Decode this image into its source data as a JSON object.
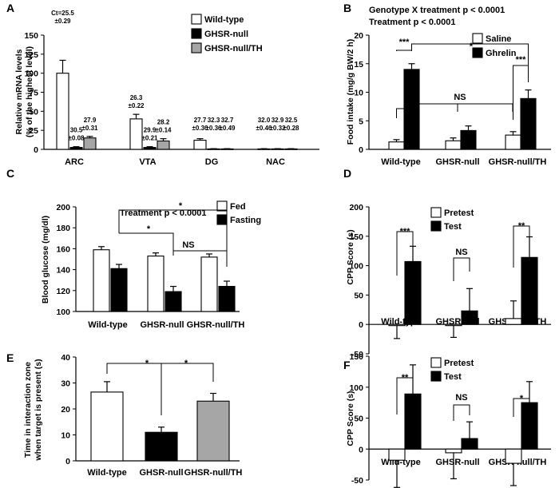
{
  "chart_data": [
    {
      "panel": "A",
      "type": "bar",
      "ylabel": [
        "Relative mRNA levels",
        "(% of the highest level)"
      ],
      "ylim": [
        0,
        150
      ],
      "yticks": [
        0,
        25,
        50,
        75,
        100,
        125,
        150
      ],
      "categories": [
        "ARC",
        "VTA",
        "DG",
        "NAC"
      ],
      "legend": [
        "Wild-type",
        "GHSR-null",
        "GHSR-null/TH"
      ],
      "colors": [
        "#ffffff",
        "#000000",
        "#a6a6a6"
      ],
      "series": [
        {
          "name": "Wild-type",
          "values": [
            100,
            40,
            12,
            0.6
          ],
          "errors": [
            17,
            6,
            2,
            0.3
          ]
        },
        {
          "name": "GHSR-null",
          "values": [
            2.5,
            2.5,
            0.6,
            0.6
          ],
          "errors": [
            1,
            1,
            0.3,
            0.3
          ]
        },
        {
          "name": "GHSR-null/TH",
          "values": [
            15,
            11,
            0.6,
            0.6
          ],
          "errors": [
            2,
            3,
            0.3,
            0.3
          ]
        }
      ],
      "ct_labels": [
        [
          "Ct=25.5",
          "±0.29"
        ],
        [
          "30.5",
          "±0.08"
        ],
        [
          "27.9",
          "±0.31"
        ],
        [
          "26.3",
          "±0.22"
        ],
        [
          "29.9",
          "±0.21"
        ],
        [
          "28.2",
          "±0.14"
        ],
        [
          "27.7",
          "±0.30"
        ],
        [
          "32.3",
          "±0.36"
        ],
        [
          "32.7",
          "±0.49"
        ],
        [
          "32.0",
          "±0.40"
        ],
        [
          "32.9",
          "±0.32"
        ],
        [
          "32.5",
          "±0.28"
        ]
      ]
    },
    {
      "panel": "B",
      "type": "bar",
      "ylabel": [
        "Food intake (mg/g BW/2 h)"
      ],
      "ylim": [
        0,
        20
      ],
      "yticks": [
        0,
        5,
        10,
        15,
        20
      ],
      "categories": [
        "Wild-type",
        "GHSR-null",
        "GHSR-null/TH"
      ],
      "legend": [
        "Saline",
        "Ghrelin"
      ],
      "colors": [
        "#ffffff",
        "#000000"
      ],
      "series": [
        {
          "name": "Saline",
          "values": [
            1.3,
            1.5,
            2.5
          ],
          "errors": [
            0.4,
            0.5,
            0.6
          ]
        },
        {
          "name": "Ghrelin",
          "values": [
            14,
            3.3,
            8.9
          ],
          "errors": [
            1.0,
            0.8,
            1.5
          ]
        }
      ],
      "stats_lines": [
        "Genotype X treatment p < 0.0001",
        "Treatment p < 0.0001"
      ],
      "annotations": [
        "***",
        "*",
        "***",
        "NS"
      ]
    },
    {
      "panel": "C",
      "type": "bar",
      "ylabel": [
        "Blood glucose (mg/dl)"
      ],
      "ylim": [
        100,
        200
      ],
      "yticks": [
        100,
        120,
        140,
        160,
        180,
        200
      ],
      "categories": [
        "Wild-type",
        "GHSR-null",
        "GHSR-null/TH"
      ],
      "legend": [
        "Fed",
        "Fasting"
      ],
      "colors": [
        "#ffffff",
        "#000000"
      ],
      "series": [
        {
          "name": "Fed",
          "values": [
            159,
            153,
            152
          ],
          "errors": [
            3,
            3,
            3
          ]
        },
        {
          "name": "Fasting",
          "values": [
            141,
            119,
            124
          ],
          "errors": [
            4,
            5,
            5
          ]
        }
      ],
      "stats_lines": [
        "Treatment p < 0.0001"
      ],
      "annotations": [
        "*",
        "*",
        "NS"
      ]
    },
    {
      "panel": "D",
      "type": "bar",
      "ylabel": [
        "CPP Score (s)"
      ],
      "ylim": [
        -50,
        200
      ],
      "yticks": [
        -50,
        0,
        50,
        100,
        150,
        200
      ],
      "categories": [
        "Wild-type",
        "GHSR-null",
        "GHSR-null/TH"
      ],
      "legend": [
        "Pretest",
        "Test"
      ],
      "colors": [
        "#ffffff",
        "#000000"
      ],
      "series": [
        {
          "name": "Pretest",
          "values": [
            -2,
            -2,
            10
          ],
          "errors": [
            22,
            20,
            30
          ]
        },
        {
          "name": "Test",
          "values": [
            107,
            23,
            114
          ],
          "errors": [
            26,
            38,
            35
          ]
        }
      ],
      "annotations": [
        "***",
        "NS",
        "**"
      ]
    },
    {
      "panel": "E",
      "type": "bar",
      "ylabel": [
        "Time in interaction zone",
        "when target is present (s)"
      ],
      "ylim": [
        0,
        40
      ],
      "yticks": [
        0,
        10,
        20,
        30,
        40
      ],
      "categories": [
        "Wild-type",
        "GHSR-null",
        "GHSR-null/TH"
      ],
      "colors": [
        "#ffffff",
        "#000000",
        "#a6a6a6"
      ],
      "values": [
        26.5,
        11,
        23
      ],
      "errors": [
        4,
        2,
        3
      ],
      "annotations": [
        "*",
        "*"
      ]
    },
    {
      "panel": "F",
      "type": "bar",
      "ylabel": [
        "CPP Score (s)"
      ],
      "ylim": [
        -50,
        150
      ],
      "yticks": [
        -50,
        0,
        50,
        100,
        150
      ],
      "categories": [
        "Wild-type",
        "GHSR-null",
        "GHSR-null/TH"
      ],
      "legend": [
        "Pretest",
        "Test"
      ],
      "colors": [
        "#ffffff",
        "#000000"
      ],
      "series": [
        {
          "name": "Pretest",
          "values": [
            -18,
            -6,
            -23
          ],
          "errors": [
            44,
            42,
            36
          ]
        },
        {
          "name": "Test",
          "values": [
            89,
            17,
            75
          ],
          "errors": [
            47,
            27,
            34
          ]
        }
      ],
      "annotations": [
        "**",
        "NS",
        "*"
      ]
    }
  ]
}
